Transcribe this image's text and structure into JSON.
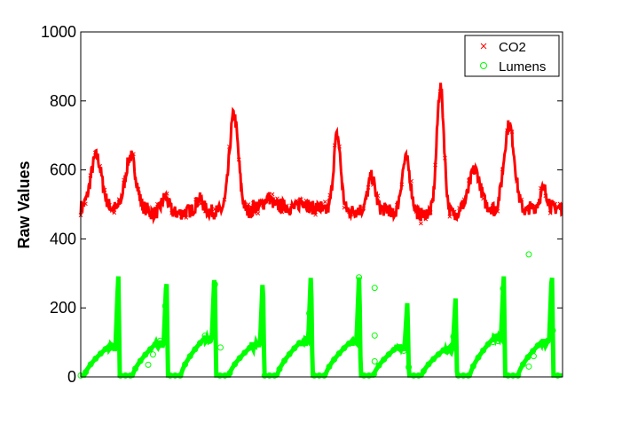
{
  "chart_data": {
    "type": "scatter",
    "title": "",
    "xlabel": "",
    "ylabel": "Raw Values",
    "ylim": [
      0,
      1000
    ],
    "yticks": [
      0,
      200,
      400,
      600,
      800,
      1000
    ],
    "grid": false,
    "legend_position": "top-right",
    "series": [
      {
        "name": "CO2",
        "marker": "x",
        "color": "#ff0000",
        "segments": [
          {
            "base": 490,
            "peak": 640,
            "width": 6
          },
          {
            "base": 485,
            "peak": 640,
            "width": 6
          },
          {
            "base": 475,
            "peak": 520,
            "width": 4
          },
          {
            "base": 480,
            "peak": 515,
            "width": 4
          },
          {
            "base": 480,
            "peak": 760,
            "width": 5
          },
          {
            "base": 495,
            "peak": 520,
            "width": 4
          },
          {
            "base": 490,
            "peak": 510,
            "width": 4
          },
          {
            "base": 480,
            "peak": 700,
            "width": 4
          },
          {
            "base": 485,
            "peak": 580,
            "width": 4
          },
          {
            "base": 470,
            "peak": 630,
            "width": 5
          },
          {
            "base": 475,
            "peak": 840,
            "width": 4
          },
          {
            "base": 490,
            "peak": 600,
            "width": 6
          },
          {
            "base": 480,
            "peak": 730,
            "width": 6
          },
          {
            "base": 490,
            "peak": 545,
            "width": 4
          }
        ]
      },
      {
        "name": "Lumens",
        "marker": "o",
        "color": "#00ff00",
        "cycles": [
          {
            "plateau": 85,
            "peak": 300
          },
          {
            "plateau": 95,
            "peak": 295
          },
          {
            "plateau": 110,
            "peak": 315
          },
          {
            "plateau": 90,
            "peak": 295
          },
          {
            "plateau": 100,
            "peak": 310
          },
          {
            "plateau": 95,
            "peak": 305
          },
          {
            "plateau": 85,
            "peak": 220
          },
          {
            "plateau": 80,
            "peak": 230
          },
          {
            "plateau": 110,
            "peak": 300
          },
          {
            "plateau": 100,
            "peak": 315
          }
        ],
        "outliers": [
          {
            "x": 0.14,
            "y": 35
          },
          {
            "x": 0.15,
            "y": 65
          },
          {
            "x": 0.29,
            "y": 85
          },
          {
            "x": 0.61,
            "y": 258
          },
          {
            "x": 0.61,
            "y": 120
          },
          {
            "x": 0.61,
            "y": 45
          },
          {
            "x": 0.93,
            "y": 355
          },
          {
            "x": 0.94,
            "y": 60
          },
          {
            "x": 0.93,
            "y": 30
          }
        ]
      }
    ]
  }
}
